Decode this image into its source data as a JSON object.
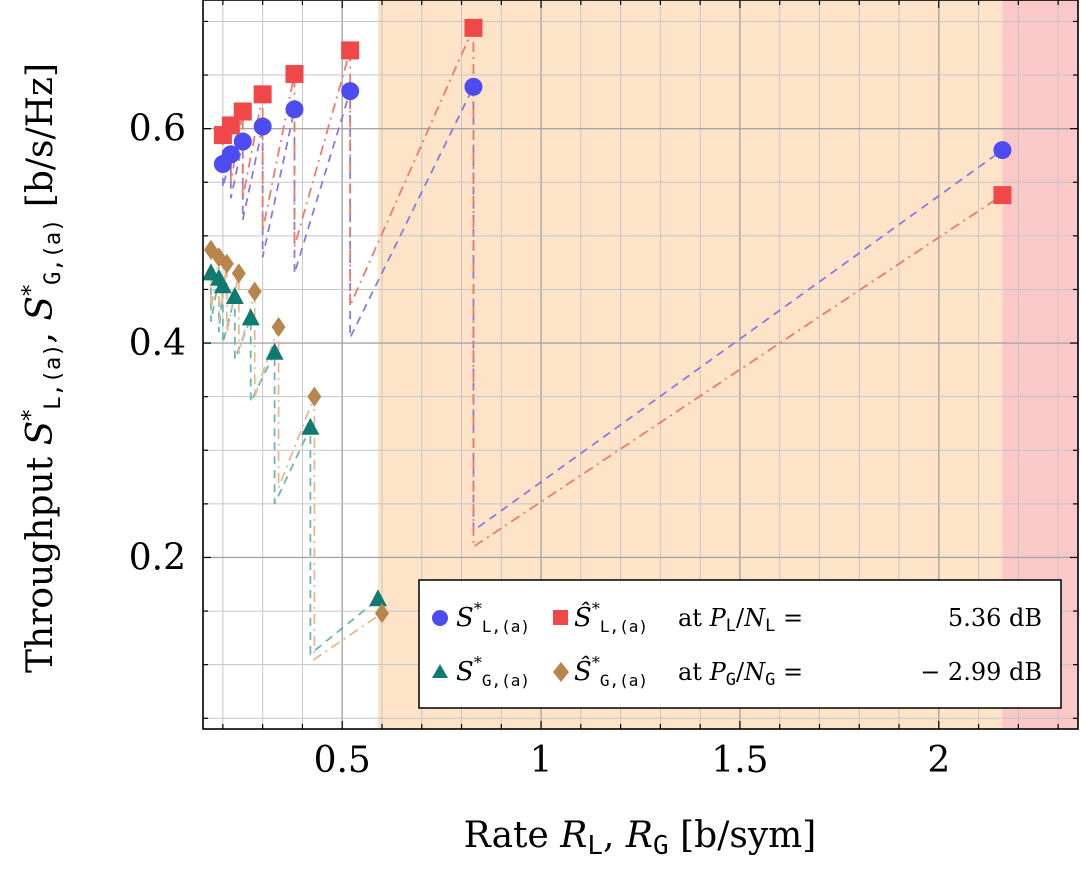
{
  "chart_data": {
    "type": "scatter",
    "xlabel": "Rate R_L, R_G [b/sym]",
    "ylabel": "Throughput S*_L,(a), S*_G,(a) [b/s/Hz]",
    "xlim": [
      0.15,
      2.35
    ],
    "ylim": [
      0.04,
      0.72
    ],
    "x_ticks": [
      0.5,
      1,
      1.5,
      2
    ],
    "x_tick_labels": [
      "0.5",
      "1",
      "1.5",
      "2"
    ],
    "y_ticks": [
      0.2,
      0.4,
      0.6
    ],
    "y_tick_labels": [
      "0.2",
      "0.4",
      "0.6"
    ],
    "grid": true,
    "shaded_regions": [
      {
        "x_from": 0.59,
        "x_to": 2.16,
        "color": "#fde3c7"
      },
      {
        "x_from": 2.16,
        "x_to": 2.35,
        "color": "#fbc8c8"
      }
    ],
    "series": [
      {
        "name": "S*_L,(a)",
        "color": "#4c4cf0",
        "line_color": "#8a7ae0",
        "marker": "circle",
        "dash": "8,6",
        "x": [
          0.2,
          0.22,
          0.25,
          0.3,
          0.38,
          0.52,
          0.83,
          2.16
        ],
        "y": [
          0.567,
          0.576,
          0.588,
          0.602,
          0.618,
          0.635,
          0.639,
          0.58
        ],
        "connectors": [
          [
            0.567,
            0.545
          ],
          [
            0.576,
            0.535
          ],
          [
            0.588,
            0.515
          ],
          [
            0.602,
            0.48
          ],
          [
            0.618,
            0.465
          ],
          [
            0.635,
            0.405
          ],
          [
            0.639,
            0.225
          ],
          [
            0.58,
            0.58
          ]
        ]
      },
      {
        "name": "Ŝ*_L,(a)",
        "color": "#f04848",
        "line_color": "#f07a6a",
        "marker": "square",
        "dash": "10,5,2,5",
        "x": [
          0.2,
          0.22,
          0.25,
          0.3,
          0.38,
          0.52,
          0.83,
          2.16
        ],
        "y": [
          0.594,
          0.603,
          0.616,
          0.632,
          0.651,
          0.673,
          0.694,
          0.538
        ],
        "connectors": [
          [
            0.594,
            0.56
          ],
          [
            0.603,
            0.55
          ],
          [
            0.616,
            0.535
          ],
          [
            0.632,
            0.505
          ],
          [
            0.651,
            0.49
          ],
          [
            0.673,
            0.435
          ],
          [
            0.694,
            0.21
          ],
          [
            0.538,
            0.538
          ]
        ]
      },
      {
        "name": "S*_G,(a)",
        "color": "#107a70",
        "line_color": "#6ab8b0",
        "marker": "triangle",
        "dash": "8,6",
        "x": [
          0.17,
          0.19,
          0.2,
          0.23,
          0.27,
          0.33,
          0.42,
          0.59
        ],
        "y": [
          0.465,
          0.46,
          0.453,
          0.443,
          0.423,
          0.391,
          0.321,
          0.161
        ],
        "connectors": [
          [
            0.465,
            0.42
          ],
          [
            0.46,
            0.41
          ],
          [
            0.453,
            0.4
          ],
          [
            0.443,
            0.385
          ],
          [
            0.423,
            0.345
          ],
          [
            0.391,
            0.25
          ],
          [
            0.321,
            0.11
          ],
          [
            0.161,
            0.161
          ]
        ]
      },
      {
        "name": "Ŝ*_G,(a)",
        "color": "#b8864c",
        "line_color": "#e8b890",
        "marker": "diamond",
        "dash": "10,5,2,5",
        "x": [
          0.17,
          0.19,
          0.21,
          0.24,
          0.28,
          0.34,
          0.43,
          0.6
        ],
        "y": [
          0.487,
          0.48,
          0.474,
          0.465,
          0.448,
          0.415,
          0.35,
          0.148
        ],
        "connectors": [
          [
            0.487,
            0.43
          ],
          [
            0.48,
            0.42
          ],
          [
            0.474,
            0.41
          ],
          [
            0.465,
            0.39
          ],
          [
            0.448,
            0.35
          ],
          [
            0.415,
            0.265
          ],
          [
            0.35,
            0.105
          ],
          [
            0.148,
            0.148
          ]
        ]
      }
    ],
    "legend": {
      "placement": "bottom-right",
      "rows": [
        {
          "sym_a": "S*_L,(a)",
          "sym_b": "Ŝ*_L,(a)",
          "text": "at P_L/N_L =",
          "value": "5.36 dB"
        },
        {
          "sym_a": "S*_G,(a)",
          "sym_b": "Ŝ*_G,(a)",
          "text": "at P_G/N_G =",
          "value": "− 2.99 dB"
        }
      ]
    }
  }
}
